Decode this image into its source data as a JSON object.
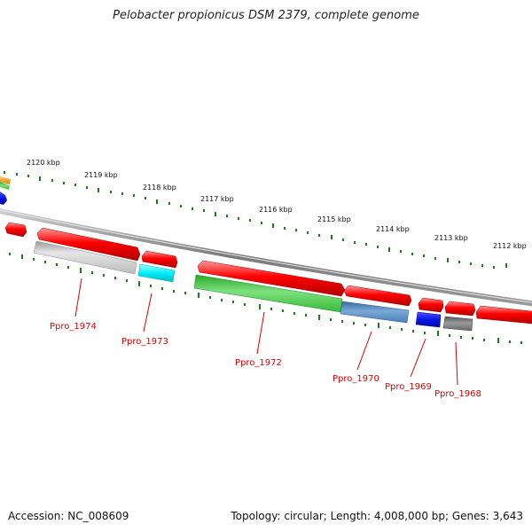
{
  "title": "Pelobacter propionicus DSM 2379, complete genome",
  "footer": {
    "accession": "Accession: NC_008609",
    "summary": "Topology: circular; Length: 4,008,000 bp; Genes: 3,643"
  },
  "scale_labels": [
    "2120 kbp",
    "2119 kbp",
    "2118 kbp",
    "2117 kbp",
    "2116 kbp",
    "2115 kbp",
    "2114 kbp",
    "2113 kbp",
    "2112 kbp"
  ],
  "gene_labels": [
    "Ppro_1974",
    "Ppro_1973",
    "Ppro_1972",
    "Ppro_1970",
    "Ppro_1969",
    "Ppro_1968"
  ],
  "colors": {
    "backbone": "#8a8a8a",
    "forward_gene": "#ee0000",
    "label": "#dd0000",
    "tick": "#1e7a1e",
    "cog_gray": "#b4b4b4",
    "cog_cyan": "#22e6f0",
    "cog_green": "#3cc83c",
    "cog_steelblue": "#4a7fb8",
    "cog_blue": "#0a14e6",
    "cog_darkgray": "#6e6e6e",
    "cog_orange": "#ff9900"
  }
}
